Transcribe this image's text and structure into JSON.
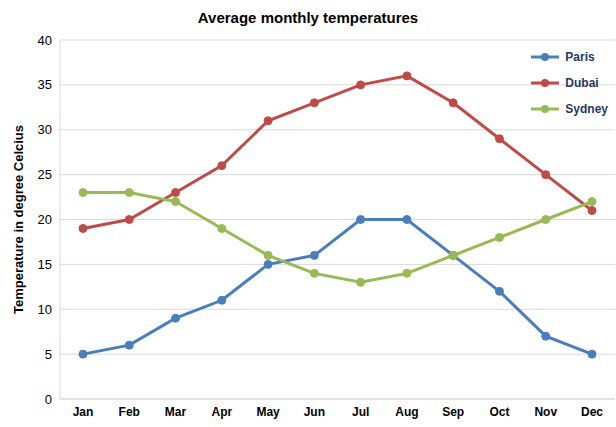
{
  "chart_data": {
    "type": "line",
    "title": "Average monthly temperatures",
    "y_label": "Temperature in degree Celcius",
    "categories": [
      "Jan",
      "Feb",
      "Mar",
      "Apr",
      "May",
      "Jun",
      "Jul",
      "Aug",
      "Sep",
      "Oct",
      "Nov",
      "Dec"
    ],
    "series": [
      {
        "name": "Paris",
        "color": "#4a7ebb",
        "marker": "circle",
        "values": [
          5,
          6,
          9,
          11,
          15,
          16,
          20,
          20,
          16,
          12,
          7,
          5
        ]
      },
      {
        "name": "Dubai",
        "color": "#be4b48",
        "marker": "circle",
        "values": [
          19,
          20,
          23,
          26,
          31,
          33,
          35,
          36,
          33,
          29,
          25,
          21
        ]
      },
      {
        "name": "Sydney",
        "color": "#98b954",
        "marker": "circle",
        "values": [
          23,
          23,
          22,
          19,
          16,
          14,
          13,
          14,
          16,
          18,
          20,
          22
        ]
      }
    ],
    "ylim": [
      0,
      40
    ],
    "yticks": [
      0,
      5,
      10,
      15,
      20,
      25,
      30,
      35,
      40
    ],
    "grid": true,
    "legend": "upper right"
  }
}
